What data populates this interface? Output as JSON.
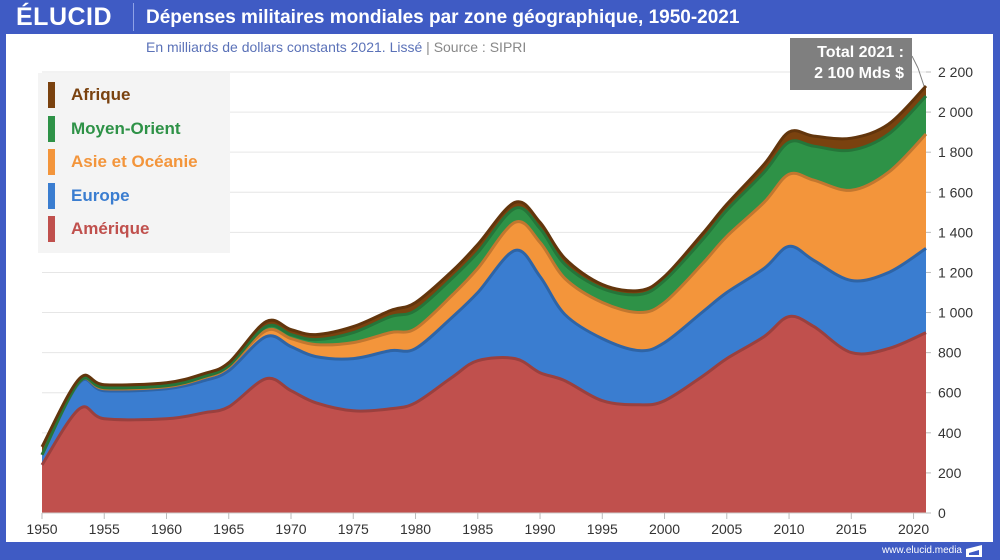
{
  "header": {
    "logo": "ÉLUCID",
    "title": "Dépenses militaires mondiales par zone géographique, 1950-2021",
    "subtitle": "En milliards de dollars constants 2021. Lissé",
    "source_sep": "|",
    "source": "Source : SIPRI"
  },
  "callout": {
    "line1": "Total 2021 :",
    "line2": "2 100 Mds $"
  },
  "footer": {
    "url": "www.elucid.media"
  },
  "chart_data": {
    "type": "area",
    "stacked": true,
    "smoothed": true,
    "title": "Dépenses militaires mondiales par zone géographique, 1950-2021",
    "subtitle": "En milliards de dollars constants 2021. Lissé | Source : SIPRI",
    "xlabel": "",
    "ylabel": "",
    "xlim": [
      1950,
      2021
    ],
    "ylim": [
      0,
      2200
    ],
    "grid": true,
    "legend_position": "top-left",
    "x_ticks": [
      "1950",
      "1955",
      "1960",
      "1965",
      "1970",
      "1975",
      "1980",
      "1985",
      "1990",
      "1995",
      "2000",
      "2005",
      "2010",
      "2015",
      "2020"
    ],
    "y_ticks": [
      "0",
      "200",
      "400",
      "600",
      "800",
      "1 000",
      "1 200",
      "1 400",
      "1 600",
      "1 800",
      "2 000",
      "2 200"
    ],
    "y_tick_values": [
      0,
      200,
      400,
      600,
      800,
      1000,
      1200,
      1400,
      1600,
      1800,
      2000,
      2200
    ],
    "x": [
      1950,
      1953,
      1955,
      1960,
      1963,
      1965,
      1968,
      1970,
      1972,
      1975,
      1978,
      1980,
      1983,
      1985,
      1988,
      1990,
      1992,
      1995,
      1998,
      2000,
      2003,
      2005,
      2008,
      2010,
      2012,
      2015,
      2018,
      2021
    ],
    "series": [
      {
        "name": "Amérique",
        "color": "#c0504d",
        "values": [
          240,
          520,
          470,
          470,
          500,
          530,
          670,
          610,
          550,
          510,
          520,
          550,
          680,
          760,
          770,
          700,
          660,
          560,
          540,
          560,
          680,
          770,
          880,
          980,
          930,
          800,
          820,
          900
        ]
      },
      {
        "name": "Europe",
        "color": "#3a7dd0",
        "values": [
          50,
          130,
          140,
          150,
          160,
          180,
          210,
          220,
          230,
          260,
          290,
          270,
          300,
          340,
          540,
          480,
          330,
          310,
          270,
          290,
          320,
          330,
          340,
          350,
          330,
          360,
          380,
          420
        ]
      },
      {
        "name": "Asie et Océanie",
        "color": "#f3953b",
        "values": [
          0,
          5,
          10,
          10,
          15,
          20,
          30,
          40,
          60,
          80,
          90,
          100,
          110,
          120,
          140,
          170,
          180,
          180,
          190,
          200,
          240,
          280,
          330,
          360,
          400,
          450,
          500,
          570
        ]
      },
      {
        "name": "Moyen-Orient",
        "color": "#2e9247",
        "values": [
          0,
          0,
          5,
          5,
          5,
          5,
          20,
          20,
          25,
          50,
          80,
          90,
          85,
          80,
          70,
          70,
          70,
          70,
          90,
          110,
          120,
          130,
          150,
          160,
          170,
          200,
          190,
          190
        ]
      },
      {
        "name": "Afrique",
        "color": "#7a420f",
        "values": [
          40,
          15,
          15,
          15,
          15,
          15,
          25,
          25,
          25,
          30,
          30,
          40,
          35,
          40,
          30,
          30,
          30,
          20,
          20,
          20,
          30,
          30,
          40,
          50,
          50,
          60,
          50,
          50
        ]
      }
    ],
    "annotation": "Total 2021 : 2 100 Mds $"
  }
}
